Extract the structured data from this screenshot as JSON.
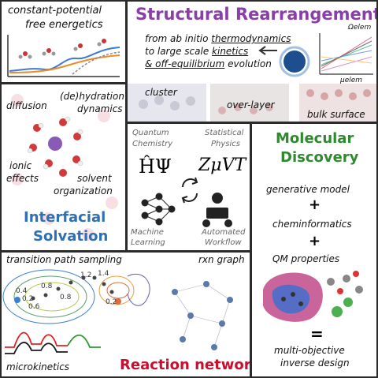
{
  "panels": {
    "free_energetics": {
      "title_line1": "constant-potential",
      "title_line2": "free energetics"
    },
    "structural": {
      "title": "Structural Rearrangement",
      "line1_prefix": "from ab initio ",
      "line1_emph": "thermodynamics",
      "line2_prefix": "to large scale ",
      "line2_emph": "kinetics",
      "line3_emph": "& off-equilibrium",
      "line3_suffix": " evolution",
      "axis_omega": "Ωelem",
      "axis_mu": "μelem",
      "labels": [
        "cluster",
        "over-layer",
        "bulk surface"
      ]
    },
    "solvation": {
      "labels": [
        "(de)hydration",
        "dynamics",
        "diffusion",
        "ionic",
        "effects",
        "solvent",
        "organization"
      ],
      "title_line1": "Interfacial",
      "title_line2": "Solvation"
    },
    "center": {
      "quantum_line1": "Quantum",
      "quantum_line2": "Chemistry",
      "stat_line1": "Statistical",
      "stat_line2": "Physics",
      "hamiltonian": "ĤΨ",
      "partition": "ZμVT",
      "ml_line1": "Machine",
      "ml_line2": "Learning",
      "wf_line1": "Automated",
      "wf_line2": "Workflow"
    },
    "molecular": {
      "title_line1": "Molecular",
      "title_line2": "Discovery",
      "items": [
        "generative model",
        "+",
        "cheminformatics",
        "+",
        "QM properties"
      ],
      "equals": "=",
      "result_line1": "multi-objective",
      "result_line2": "inverse design"
    },
    "reaction": {
      "tps": "transition path sampling",
      "rxn": "rxn graph",
      "micro": "microkinetics",
      "title": "Reaction network",
      "contours": [
        "0.8",
        "0.6",
        "0.4",
        "0.2",
        "0.2",
        "0.8",
        "1.2",
        "1.4"
      ]
    }
  },
  "colors": {
    "purple": "#8a3fa8",
    "blue": "#2f6fb3",
    "green": "#2f8a2f",
    "red": "#c8102e",
    "border": "#2b2b2b"
  }
}
